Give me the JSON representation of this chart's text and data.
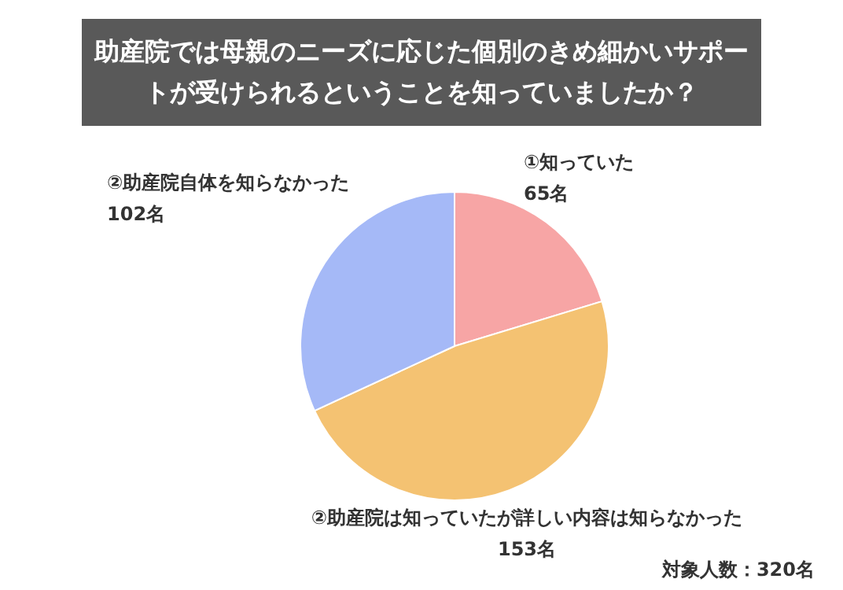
{
  "chart_data": {
    "type": "pie",
    "title": "助産院では母親のニーズに応じた個別のきめ細かいサポートが受けられるということを知っていましたか？",
    "categories": [
      "①知っていた",
      "②助産院は知っていたが詳しい内容は知らなかった",
      "②助産院自体を知らなかった"
    ],
    "values": [
      65,
      153,
      102
    ],
    "value_labels": [
      "65名",
      "153名",
      "102名"
    ],
    "colors": [
      "#f7a5a5",
      "#f4c272",
      "#a5b9f7"
    ],
    "annotations": [
      "対象人数：320名"
    ]
  }
}
